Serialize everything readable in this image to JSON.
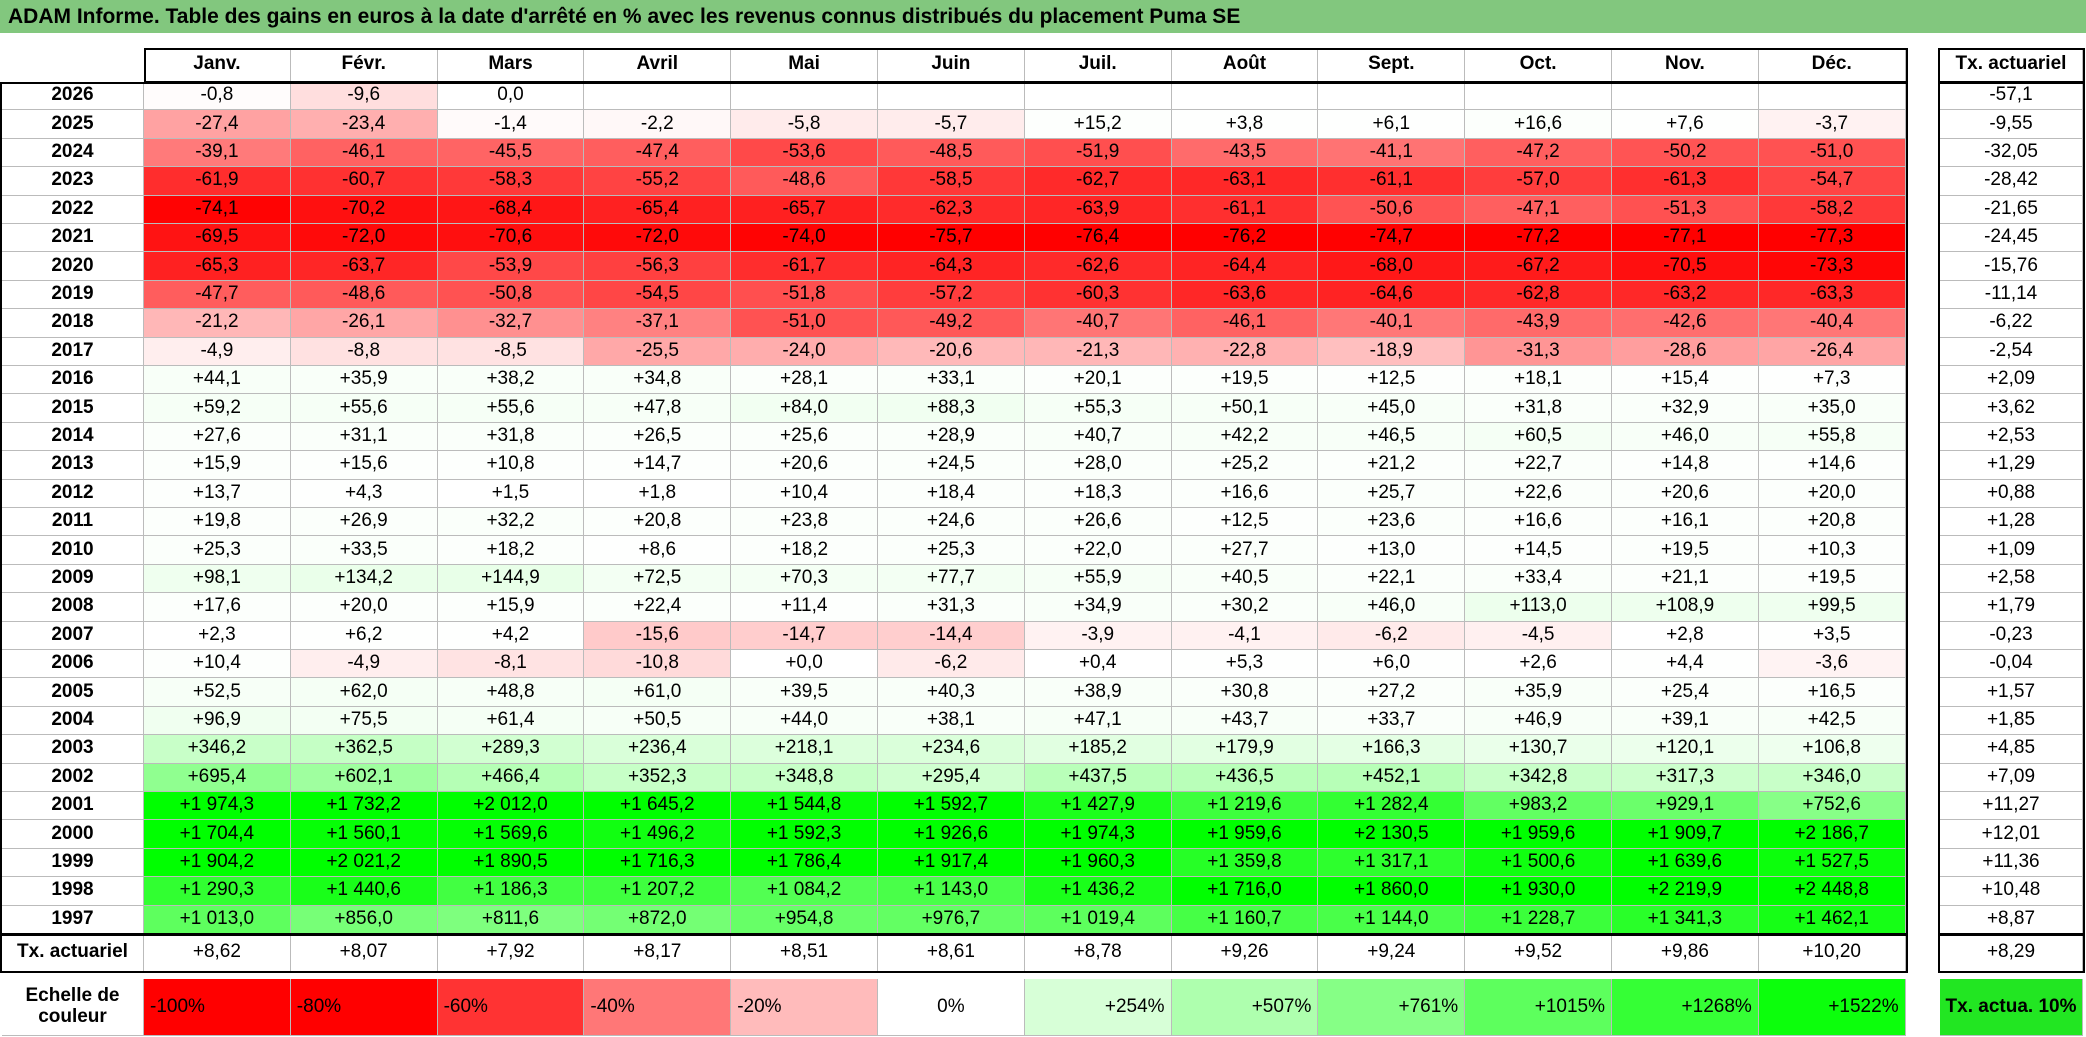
{
  "title": "ADAM Informe. Table des gains en euros à la date d'arrêté en % avec les revenus connus distribués du placement Puma SE",
  "table": {
    "columns": [
      "Janv.",
      "Févr.",
      "Mars",
      "Avril",
      "Mai",
      "Juin",
      "Juil.",
      "Août",
      "Sept.",
      "Oct.",
      "Nov.",
      "Déc."
    ],
    "rate_header": "Tx. actuariel",
    "rows": [
      {
        "year": "2026",
        "values": [
          "-0,8",
          "-9,6",
          "0,0"
        ],
        "rate": "-57,1"
      },
      {
        "year": "2025",
        "values": [
          "-27,4",
          "-23,4",
          "-1,4",
          "-2,2",
          "-5,8",
          "-5,7",
          "+15,2",
          "+3,8",
          "+6,1",
          "+16,6",
          "+7,6",
          "-3,7"
        ],
        "rate": "-9,55"
      },
      {
        "year": "2024",
        "values": [
          "-39,1",
          "-46,1",
          "-45,5",
          "-47,4",
          "-53,6",
          "-48,5",
          "-51,9",
          "-43,5",
          "-41,1",
          "-47,2",
          "-50,2",
          "-51,0"
        ],
        "rate": "-32,05"
      },
      {
        "year": "2023",
        "values": [
          "-61,9",
          "-60,7",
          "-58,3",
          "-55,2",
          "-48,6",
          "-58,5",
          "-62,7",
          "-63,1",
          "-61,1",
          "-57,0",
          "-61,3",
          "-54,7"
        ],
        "rate": "-28,42"
      },
      {
        "year": "2022",
        "values": [
          "-74,1",
          "-70,2",
          "-68,4",
          "-65,4",
          "-65,7",
          "-62,3",
          "-63,9",
          "-61,1",
          "-50,6",
          "-47,1",
          "-51,3",
          "-58,2"
        ],
        "rate": "-21,65"
      },
      {
        "year": "2021",
        "values": [
          "-69,5",
          "-72,0",
          "-70,6",
          "-72,0",
          "-74,0",
          "-75,7",
          "-76,4",
          "-76,2",
          "-74,7",
          "-77,2",
          "-77,1",
          "-77,3"
        ],
        "rate": "-24,45"
      },
      {
        "year": "2020",
        "values": [
          "-65,3",
          "-63,7",
          "-53,9",
          "-56,3",
          "-61,7",
          "-64,3",
          "-62,6",
          "-64,4",
          "-68,0",
          "-67,2",
          "-70,5",
          "-73,3"
        ],
        "rate": "-15,76"
      },
      {
        "year": "2019",
        "values": [
          "-47,7",
          "-48,6",
          "-50,8",
          "-54,5",
          "-51,8",
          "-57,2",
          "-60,3",
          "-63,6",
          "-64,6",
          "-62,8",
          "-63,2",
          "-63,3"
        ],
        "rate": "-11,14"
      },
      {
        "year": "2018",
        "values": [
          "-21,2",
          "-26,1",
          "-32,7",
          "-37,1",
          "-51,0",
          "-49,2",
          "-40,7",
          "-46,1",
          "-40,1",
          "-43,9",
          "-42,6",
          "-40,4"
        ],
        "rate": "-6,22"
      },
      {
        "year": "2017",
        "values": [
          "-4,9",
          "-8,8",
          "-8,5",
          "-25,5",
          "-24,0",
          "-20,6",
          "-21,3",
          "-22,8",
          "-18,9",
          "-31,3",
          "-28,6",
          "-26,4"
        ],
        "rate": "-2,54"
      },
      {
        "year": "2016",
        "values": [
          "+44,1",
          "+35,9",
          "+38,2",
          "+34,8",
          "+28,1",
          "+33,1",
          "+20,1",
          "+19,5",
          "+12,5",
          "+18,1",
          "+15,4",
          "+7,3"
        ],
        "rate": "+2,09"
      },
      {
        "year": "2015",
        "values": [
          "+59,2",
          "+55,6",
          "+55,6",
          "+47,8",
          "+84,0",
          "+88,3",
          "+55,3",
          "+50,1",
          "+45,0",
          "+31,8",
          "+32,9",
          "+35,0"
        ],
        "rate": "+3,62"
      },
      {
        "year": "2014",
        "values": [
          "+27,6",
          "+31,1",
          "+31,8",
          "+26,5",
          "+25,6",
          "+28,9",
          "+40,7",
          "+42,2",
          "+46,5",
          "+60,5",
          "+46,0",
          "+55,8"
        ],
        "rate": "+2,53"
      },
      {
        "year": "2013",
        "values": [
          "+15,9",
          "+15,6",
          "+10,8",
          "+14,7",
          "+20,6",
          "+24,5",
          "+28,0",
          "+25,2",
          "+21,2",
          "+22,7",
          "+14,8",
          "+14,6"
        ],
        "rate": "+1,29"
      },
      {
        "year": "2012",
        "values": [
          "+13,7",
          "+4,3",
          "+1,5",
          "+1,8",
          "+10,4",
          "+18,4",
          "+18,3",
          "+16,6",
          "+25,7",
          "+22,6",
          "+20,6",
          "+20,0"
        ],
        "rate": "+0,88"
      },
      {
        "year": "2011",
        "values": [
          "+19,8",
          "+26,9",
          "+32,2",
          "+20,8",
          "+23,8",
          "+24,6",
          "+26,6",
          "+12,5",
          "+23,6",
          "+16,6",
          "+16,1",
          "+20,8"
        ],
        "rate": "+1,28"
      },
      {
        "year": "2010",
        "values": [
          "+25,3",
          "+33,5",
          "+18,2",
          "+8,6",
          "+18,2",
          "+25,3",
          "+22,0",
          "+27,7",
          "+13,0",
          "+14,5",
          "+19,5",
          "+10,3"
        ],
        "rate": "+1,09"
      },
      {
        "year": "2009",
        "values": [
          "+98,1",
          "+134,2",
          "+144,9",
          "+72,5",
          "+70,3",
          "+77,7",
          "+55,9",
          "+40,5",
          "+22,1",
          "+33,4",
          "+21,1",
          "+19,5"
        ],
        "rate": "+2,58"
      },
      {
        "year": "2008",
        "values": [
          "+17,6",
          "+20,0",
          "+15,9",
          "+22,4",
          "+11,4",
          "+31,3",
          "+34,9",
          "+30,2",
          "+46,0",
          "+113,0",
          "+108,9",
          "+99,5"
        ],
        "rate": "+1,79"
      },
      {
        "year": "2007",
        "values": [
          "+2,3",
          "+6,2",
          "+4,2",
          "-15,6",
          "-14,7",
          "-14,4",
          "-3,9",
          "-4,1",
          "-6,2",
          "-4,5",
          "+2,8",
          "+3,5"
        ],
        "rate": "-0,23"
      },
      {
        "year": "2006",
        "values": [
          "+10,4",
          "-4,9",
          "-8,1",
          "-10,8",
          "+0,0",
          "-6,2",
          "+0,4",
          "+5,3",
          "+6,0",
          "+2,6",
          "+4,4",
          "-3,6"
        ],
        "rate": "-0,04"
      },
      {
        "year": "2005",
        "values": [
          "+52,5",
          "+62,0",
          "+48,8",
          "+61,0",
          "+39,5",
          "+40,3",
          "+38,9",
          "+30,8",
          "+27,2",
          "+35,9",
          "+25,4",
          "+16,5"
        ],
        "rate": "+1,57"
      },
      {
        "year": "2004",
        "values": [
          "+96,9",
          "+75,5",
          "+61,4",
          "+50,5",
          "+44,0",
          "+38,1",
          "+47,1",
          "+43,7",
          "+33,7",
          "+46,9",
          "+39,1",
          "+42,5"
        ],
        "rate": "+1,85"
      },
      {
        "year": "2003",
        "values": [
          "+346,2",
          "+362,5",
          "+289,3",
          "+236,4",
          "+218,1",
          "+234,6",
          "+185,2",
          "+179,9",
          "+166,3",
          "+130,7",
          "+120,1",
          "+106,8"
        ],
        "rate": "+4,85"
      },
      {
        "year": "2002",
        "values": [
          "+695,4",
          "+602,1",
          "+466,4",
          "+352,3",
          "+348,8",
          "+295,4",
          "+437,5",
          "+436,5",
          "+452,1",
          "+342,8",
          "+317,3",
          "+346,0"
        ],
        "rate": "+7,09"
      },
      {
        "year": "2001",
        "values": [
          "+1 974,3",
          "+1 732,2",
          "+2 012,0",
          "+1 645,2",
          "+1 544,8",
          "+1 592,7",
          "+1 427,9",
          "+1 219,6",
          "+1 282,4",
          "+983,2",
          "+929,1",
          "+752,6"
        ],
        "rate": "+11,27"
      },
      {
        "year": "2000",
        "values": [
          "+1 704,4",
          "+1 560,1",
          "+1 569,6",
          "+1 496,2",
          "+1 592,3",
          "+1 926,6",
          "+1 974,3",
          "+1 959,6",
          "+2 130,5",
          "+1 959,6",
          "+1 909,7",
          "+2 186,7"
        ],
        "rate": "+12,01"
      },
      {
        "year": "1999",
        "values": [
          "+1 904,2",
          "+2 021,2",
          "+1 890,5",
          "+1 716,3",
          "+1 786,4",
          "+1 917,4",
          "+1 960,3",
          "+1 359,8",
          "+1 317,1",
          "+1 500,6",
          "+1 639,6",
          "+1 527,5"
        ],
        "rate": "+11,36"
      },
      {
        "year": "1998",
        "values": [
          "+1 290,3",
          "+1 440,6",
          "+1 186,3",
          "+1 207,2",
          "+1 084,2",
          "+1 143,0",
          "+1 436,2",
          "+1 716,0",
          "+1 860,0",
          "+1 930,0",
          "+2 219,9",
          "+2 448,8"
        ],
        "rate": "+10,48"
      },
      {
        "year": "1997",
        "values": [
          "+1 013,0",
          "+856,0",
          "+811,6",
          "+872,0",
          "+954,8",
          "+976,7",
          "+1 019,4",
          "+1 160,7",
          "+1 144,0",
          "+1 228,7",
          "+1 341,3",
          "+1 462,1"
        ],
        "rate": "+8,87"
      }
    ],
    "footer": {
      "label": "Tx. actuariel",
      "values": [
        "+8,62",
        "+8,07",
        "+7,92",
        "+8,17",
        "+8,51",
        "+8,61",
        "+8,78",
        "+9,26",
        "+9,24",
        "+9,52",
        "+9,86",
        "+10,20"
      ],
      "rate": "+8,29"
    }
  },
  "legend": {
    "label": "Echelle de couleur",
    "steps": [
      "-100%",
      "-80%",
      "-60%",
      "-40%",
      "-20%",
      "0%",
      "+254%",
      "+507%",
      "+761%",
      "+1015%",
      "+1268%",
      "+1522%"
    ],
    "rate_label": "Tx. actua. 10%"
  }
}
